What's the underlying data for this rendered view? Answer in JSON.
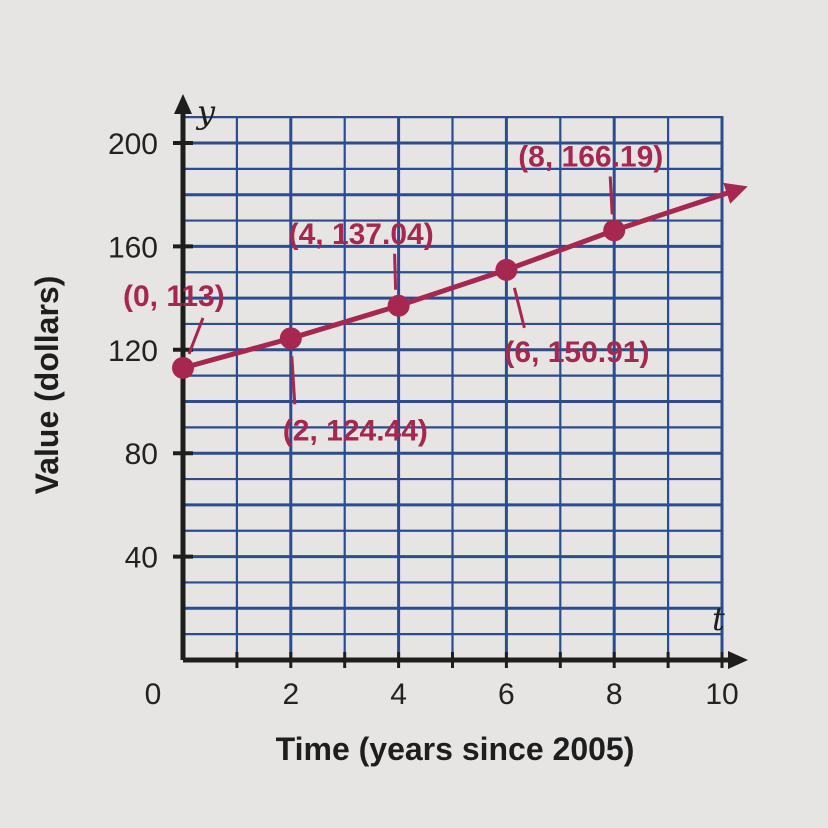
{
  "chart_data": {
    "type": "line",
    "xlabel": "Time (years since 2005)",
    "ylabel": "Value (dollars)",
    "x_axis_variable": "t",
    "y_axis_variable": "y",
    "xlim": [
      0,
      10
    ],
    "ylim": [
      0,
      200
    ],
    "x_ticks": [
      "0",
      "2",
      "4",
      "6",
      "8",
      "10"
    ],
    "y_ticks": [
      "40",
      "80",
      "120",
      "160",
      "200"
    ],
    "grid": true,
    "line_extends_with_arrow": true,
    "series": [
      {
        "points": [
          {
            "x": 0,
            "y": 113,
            "label": "(0, 113)"
          },
          {
            "x": 2,
            "y": 124.44,
            "label": "(2, 124.44)"
          },
          {
            "x": 4,
            "y": 137.04,
            "label": "(4, 137.04)"
          },
          {
            "x": 6,
            "y": 150.91,
            "label": "(6, 150.91)"
          },
          {
            "x": 8,
            "y": 166.19,
            "label": "(8, 166.19)"
          }
        ],
        "line_end": {
          "x": 10.3,
          "y": 182
        }
      }
    ],
    "colors": {
      "grid": "#2c4c8e",
      "series": "#a6274f",
      "axis": "#1e1e1e"
    }
  }
}
